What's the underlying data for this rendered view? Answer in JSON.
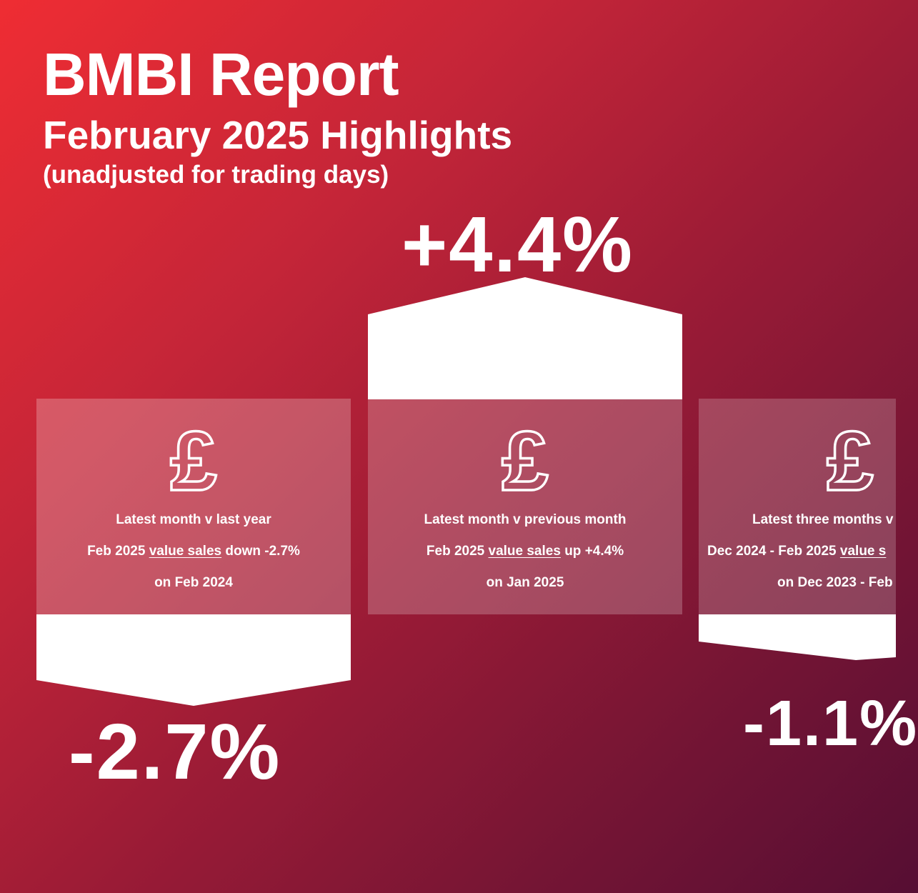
{
  "header": {
    "title": "BMBI Report",
    "subtitle": "February 2025 Highlights",
    "note": "(unadjusted for trading days)"
  },
  "cards": [
    {
      "icon": "pound-sign-icon",
      "heading": "Latest month v last year",
      "line1_prefix": "Feb 2025",
      "line1_link": "value sales",
      "line1_suffix": "down -2.7%",
      "line2": "on Feb 2024",
      "change": "-2.7%",
      "direction": "down"
    },
    {
      "icon": "pound-sign-icon",
      "heading": "Latest month v previous month",
      "line1_prefix": "Feb 2025",
      "line1_link": "value sales",
      "line1_suffix": "up +4.4%",
      "line2": "on Jan 2025",
      "change": "+4.4%",
      "direction": "up"
    },
    {
      "icon": "pound-sign-icon",
      "heading": "Latest three months v",
      "line1_prefix": "Dec 2024 - Feb 2025",
      "line1_link": "value s",
      "line1_suffix": "",
      "line2": "on Dec 2023 - Feb",
      "change": "-1.1%",
      "direction": "down"
    }
  ],
  "colors": {
    "gradient_start": "#ef2d33",
    "gradient_end": "#560e33",
    "text": "#ffffff"
  }
}
